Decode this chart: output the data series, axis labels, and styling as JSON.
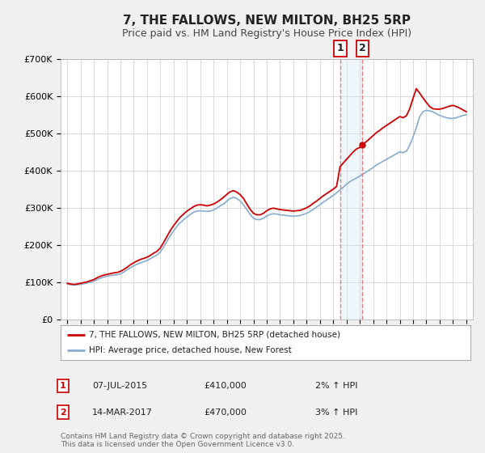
{
  "title": "7, THE FALLOWS, NEW MILTON, BH25 5RP",
  "subtitle": "Price paid vs. HM Land Registry's House Price Index (HPI)",
  "property_label": "7, THE FALLOWS, NEW MILTON, BH25 5RP (detached house)",
  "hpi_label": "HPI: Average price, detached house, New Forest",
  "property_color": "#cc0000",
  "hpi_color": "#88aacc",
  "background_color": "#f0f0f0",
  "plot_bg_color": "#ffffff",
  "grid_color": "#cccccc",
  "ylim": [
    0,
    700000
  ],
  "yticks": [
    0,
    100000,
    200000,
    300000,
    400000,
    500000,
    600000,
    700000
  ],
  "ytick_labels": [
    "£0",
    "£100K",
    "£200K",
    "£300K",
    "£400K",
    "£500K",
    "£600K",
    "£700K"
  ],
  "sale1_date": "07-JUL-2015",
  "sale1_price": "£410,000",
  "sale1_pct": "2%",
  "sale1_x": 2015.51,
  "sale1_y": 410000,
  "sale2_date": "14-MAR-2017",
  "sale2_price": "£470,000",
  "sale2_pct": "3%",
  "sale2_x": 2017.2,
  "sale2_y": 470000,
  "annotation_box_color": "#cc0000",
  "shading_color": "#d0e8f8",
  "dashed_color": "#e08080",
  "footer": "Contains HM Land Registry data © Crown copyright and database right 2025.\nThis data is licensed under the Open Government Licence v3.0.",
  "hpi_data_years": [
    1995.0,
    1995.25,
    1995.5,
    1995.75,
    1996.0,
    1996.25,
    1996.5,
    1996.75,
    1997.0,
    1997.25,
    1997.5,
    1997.75,
    1998.0,
    1998.25,
    1998.5,
    1998.75,
    1999.0,
    1999.25,
    1999.5,
    1999.75,
    2000.0,
    2000.25,
    2000.5,
    2000.75,
    2001.0,
    2001.25,
    2001.5,
    2001.75,
    2002.0,
    2002.25,
    2002.5,
    2002.75,
    2003.0,
    2003.25,
    2003.5,
    2003.75,
    2004.0,
    2004.25,
    2004.5,
    2004.75,
    2005.0,
    2005.25,
    2005.5,
    2005.75,
    2006.0,
    2006.25,
    2006.5,
    2006.75,
    2007.0,
    2007.25,
    2007.5,
    2007.75,
    2008.0,
    2008.25,
    2008.5,
    2008.75,
    2009.0,
    2009.25,
    2009.5,
    2009.75,
    2010.0,
    2010.25,
    2010.5,
    2010.75,
    2011.0,
    2011.25,
    2011.5,
    2011.75,
    2012.0,
    2012.25,
    2012.5,
    2012.75,
    2013.0,
    2013.25,
    2013.5,
    2013.75,
    2014.0,
    2014.25,
    2014.5,
    2014.75,
    2015.0,
    2015.25,
    2015.51,
    2015.75,
    2016.0,
    2016.25,
    2016.5,
    2016.75,
    2017.0,
    2017.2,
    2017.5,
    2017.75,
    2018.0,
    2018.25,
    2018.5,
    2018.75,
    2019.0,
    2019.25,
    2019.5,
    2019.75,
    2020.0,
    2020.25,
    2020.5,
    2020.75,
    2021.0,
    2021.25,
    2021.5,
    2021.75,
    2022.0,
    2022.25,
    2022.5,
    2022.75,
    2023.0,
    2023.25,
    2023.5,
    2023.75,
    2024.0,
    2024.25,
    2024.5,
    2024.75,
    2025.0
  ],
  "hpi_data_values": [
    95000,
    93000,
    92000,
    93000,
    94000,
    96000,
    98000,
    100000,
    103000,
    107000,
    111000,
    114000,
    116000,
    118000,
    119000,
    120000,
    122000,
    127000,
    133000,
    139000,
    144000,
    148000,
    152000,
    155000,
    158000,
    163000,
    168000,
    173000,
    181000,
    195000,
    210000,
    225000,
    238000,
    250000,
    260000,
    268000,
    275000,
    282000,
    288000,
    291000,
    292000,
    291000,
    290000,
    291000,
    294000,
    299000,
    305000,
    310000,
    318000,
    325000,
    328000,
    325000,
    318000,
    308000,
    295000,
    282000,
    272000,
    268000,
    268000,
    272000,
    278000,
    282000,
    284000,
    283000,
    281000,
    280000,
    279000,
    278000,
    277000,
    278000,
    279000,
    282000,
    285000,
    290000,
    296000,
    302000,
    308000,
    315000,
    321000,
    327000,
    333000,
    340000,
    348000,
    355000,
    363000,
    370000,
    375000,
    380000,
    385000,
    390000,
    396000,
    402000,
    408000,
    415000,
    420000,
    425000,
    430000,
    435000,
    440000,
    445000,
    450000,
    448000,
    452000,
    468000,
    490000,
    515000,
    545000,
    558000,
    562000,
    560000,
    558000,
    553000,
    548000,
    545000,
    542000,
    540000,
    540000,
    542000,
    545000,
    548000,
    550000
  ],
  "prop_data_years": [
    1995.0,
    1995.25,
    1995.5,
    1995.75,
    1996.0,
    1996.25,
    1996.5,
    1996.75,
    1997.0,
    1997.25,
    1997.5,
    1997.75,
    1998.0,
    1998.25,
    1998.5,
    1998.75,
    1999.0,
    1999.25,
    1999.5,
    1999.75,
    2000.0,
    2000.25,
    2000.5,
    2000.75,
    2001.0,
    2001.25,
    2001.5,
    2001.75,
    2002.0,
    2002.25,
    2002.5,
    2002.75,
    2003.0,
    2003.25,
    2003.5,
    2003.75,
    2004.0,
    2004.25,
    2004.5,
    2004.75,
    2005.0,
    2005.25,
    2005.5,
    2005.75,
    2006.0,
    2006.25,
    2006.5,
    2006.75,
    2007.0,
    2007.25,
    2007.5,
    2007.75,
    2008.0,
    2008.25,
    2008.5,
    2008.75,
    2009.0,
    2009.25,
    2009.5,
    2009.75,
    2010.0,
    2010.25,
    2010.5,
    2010.75,
    2011.0,
    2011.25,
    2011.5,
    2011.75,
    2012.0,
    2012.25,
    2012.5,
    2012.75,
    2013.0,
    2013.25,
    2013.5,
    2013.75,
    2014.0,
    2014.25,
    2014.5,
    2014.75,
    2015.0,
    2015.25,
    2015.51,
    2015.75,
    2016.0,
    2016.25,
    2016.5,
    2016.75,
    2017.0,
    2017.2,
    2017.5,
    2017.75,
    2018.0,
    2018.25,
    2018.5,
    2018.75,
    2019.0,
    2019.25,
    2019.5,
    2019.75,
    2020.0,
    2020.25,
    2020.5,
    2020.75,
    2021.0,
    2021.25,
    2021.5,
    2021.75,
    2022.0,
    2022.25,
    2022.5,
    2022.75,
    2023.0,
    2023.25,
    2023.5,
    2023.75,
    2024.0,
    2024.25,
    2024.5,
    2024.75,
    2025.0
  ],
  "prop_data_values": [
    97000,
    95000,
    94000,
    95000,
    97000,
    99000,
    101000,
    104000,
    107000,
    112000,
    116000,
    119000,
    121000,
    123000,
    125000,
    126000,
    129000,
    134000,
    140000,
    147000,
    152000,
    157000,
    161000,
    164000,
    167000,
    172000,
    178000,
    183000,
    192000,
    207000,
    223000,
    239000,
    252000,
    264000,
    275000,
    283000,
    291000,
    297000,
    303000,
    307000,
    308000,
    307000,
    305000,
    307000,
    310000,
    315000,
    321000,
    328000,
    336000,
    343000,
    346000,
    342000,
    335000,
    325000,
    310000,
    296000,
    285000,
    281000,
    281000,
    285000,
    292000,
    297000,
    299000,
    297000,
    295000,
    294000,
    293000,
    292000,
    291000,
    292000,
    293000,
    296000,
    300000,
    305000,
    312000,
    318000,
    325000,
    332000,
    338000,
    344000,
    350000,
    357000,
    410000,
    420000,
    430000,
    440000,
    450000,
    458000,
    462000,
    470000,
    478000,
    486000,
    494000,
    502000,
    508000,
    515000,
    521000,
    527000,
    533000,
    539000,
    545000,
    542000,
    547000,
    566000,
    594000,
    620000,
    608000,
    595000,
    583000,
    572000,
    566000,
    565000,
    565000,
    567000,
    570000,
    573000,
    575000,
    572000,
    568000,
    563000,
    558000
  ],
  "xlim": [
    1994.5,
    2025.5
  ],
  "xticks": [
    1995,
    1996,
    1997,
    1998,
    1999,
    2000,
    2001,
    2002,
    2003,
    2004,
    2005,
    2006,
    2007,
    2008,
    2009,
    2010,
    2011,
    2012,
    2013,
    2014,
    2015,
    2016,
    2017,
    2018,
    2019,
    2020,
    2021,
    2022,
    2023,
    2024,
    2025
  ]
}
